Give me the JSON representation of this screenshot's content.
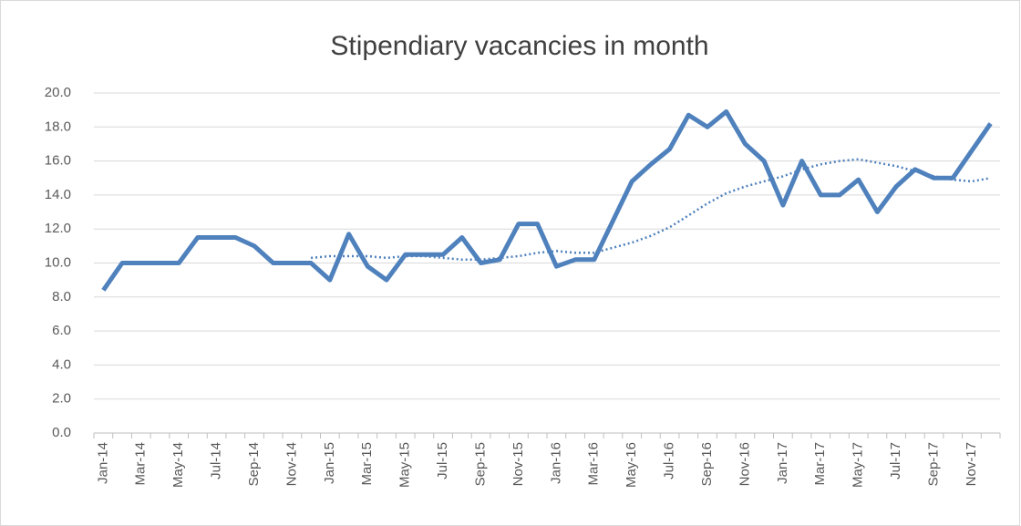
{
  "chart_data": {
    "type": "line",
    "title": "Stipendiary vacancies in month",
    "categories": [
      "Jan-14",
      null,
      "Mar-14",
      null,
      "May-14",
      null,
      "Jul-14",
      null,
      "Sep-14",
      null,
      "Nov-14",
      null,
      "Jan-15",
      null,
      "Mar-15",
      null,
      "May-15",
      null,
      "Jul-15",
      null,
      "Sep-15",
      null,
      "Nov-15",
      null,
      "Jan-16",
      null,
      "Mar-16",
      null,
      "May-16",
      null,
      "Jul-16",
      null,
      "Sep-16",
      null,
      "Nov-16",
      null,
      "Jan-17",
      null,
      "Mar-17",
      null,
      "May-17",
      null,
      "Jul-17",
      null,
      "Sep-17",
      null,
      "Nov-17",
      null
    ],
    "series": [
      {
        "color": "#4f81bd",
        "style": "solid",
        "values": [
          8.4,
          10.0,
          10.0,
          10.0,
          10.0,
          11.5,
          11.5,
          11.5,
          11.0,
          10.0,
          10.0,
          10.0,
          9.0,
          11.7,
          9.8,
          9.0,
          10.5,
          10.5,
          10.5,
          11.5,
          10.0,
          10.2,
          12.3,
          12.3,
          9.8,
          10.2,
          10.2,
          12.5,
          14.8,
          15.8,
          16.7,
          18.7,
          18.0,
          18.9,
          17.0,
          16.0,
          13.4,
          16.0,
          14.0,
          14.0,
          14.9,
          13.0,
          14.5,
          15.5,
          15.0,
          15.0,
          16.6,
          18.2
        ]
      },
      {
        "color": "#4f81bd",
        "style": "dotted",
        "values": [
          null,
          null,
          null,
          null,
          null,
          null,
          null,
          null,
          null,
          null,
          null,
          10.3,
          10.4,
          10.4,
          10.4,
          10.3,
          10.4,
          10.4,
          10.3,
          10.2,
          10.2,
          10.3,
          10.4,
          10.6,
          10.7,
          10.6,
          10.6,
          10.9,
          11.2,
          11.6,
          12.1,
          12.8,
          13.5,
          14.1,
          14.5,
          14.8,
          15.1,
          15.5,
          15.8,
          16.0,
          16.1,
          15.9,
          15.7,
          15.4,
          15.1,
          14.9,
          14.8,
          15.0
        ]
      }
    ],
    "ylim": [
      0,
      20
    ],
    "yticks": [
      {
        "value": 0,
        "label": "0.0"
      },
      {
        "value": 2,
        "label": "2.0"
      },
      {
        "value": 4,
        "label": "4.0"
      },
      {
        "value": 6,
        "label": "6.0"
      },
      {
        "value": 8,
        "label": "8.0"
      },
      {
        "value": 10,
        "label": "10.0"
      },
      {
        "value": 12,
        "label": "12.0"
      },
      {
        "value": 14,
        "label": "14.0"
      },
      {
        "value": 16,
        "label": "16.0"
      },
      {
        "value": 18,
        "label": "18.0"
      },
      {
        "value": 20,
        "label": "20.0"
      }
    ],
    "grid": true
  }
}
